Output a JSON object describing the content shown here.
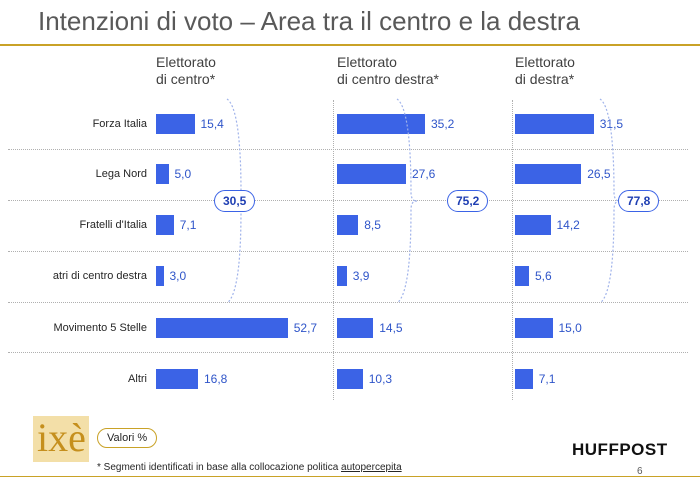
{
  "title": "Intenzioni di voto – Area tra il centro e la destra",
  "chart_data": {
    "type": "bar",
    "categories": [
      "Forza Italia",
      "Lega Nord",
      "Fratelli d'Italia",
      "atri di centro destra",
      "Movimento 5 Stelle",
      "Altri"
    ],
    "series": [
      {
        "name": "Elettorato\ndi centro*",
        "values": [
          15.4,
          5.0,
          7.1,
          3.0,
          52.7,
          16.8
        ],
        "labels": [
          "15,4",
          "5,0",
          "7,1",
          "3,0",
          "52,7",
          "16,8"
        ],
        "total": "30,5"
      },
      {
        "name": "Elettorato\ndi centro destra*",
        "values": [
          35.2,
          27.6,
          8.5,
          3.9,
          14.5,
          10.3
        ],
        "labels": [
          "35,2",
          "27,6",
          "8,5",
          "3,9",
          "14,5",
          "10,3"
        ],
        "total": "75,2"
      },
      {
        "name": "Elettorato\ndi destra*",
        "values": [
          31.5,
          26.5,
          14.2,
          5.6,
          15.0,
          7.1
        ],
        "labels": [
          "31,5",
          "26,5",
          "14,2",
          "5,6",
          "15,0",
          "7,1"
        ],
        "total": "77,8"
      }
    ],
    "orientation": "horizontal",
    "colors": {
      "bar": "#3b63e6",
      "accent": "#c9a227"
    }
  },
  "footer": {
    "logo": "ixè",
    "units_badge": "Valori %",
    "footnote_prefix": "* Segmenti identificati in base alla collocazione politica ",
    "footnote_underlined": "autopercepita",
    "brand": "HUFFPOST",
    "page_number": "6"
  }
}
